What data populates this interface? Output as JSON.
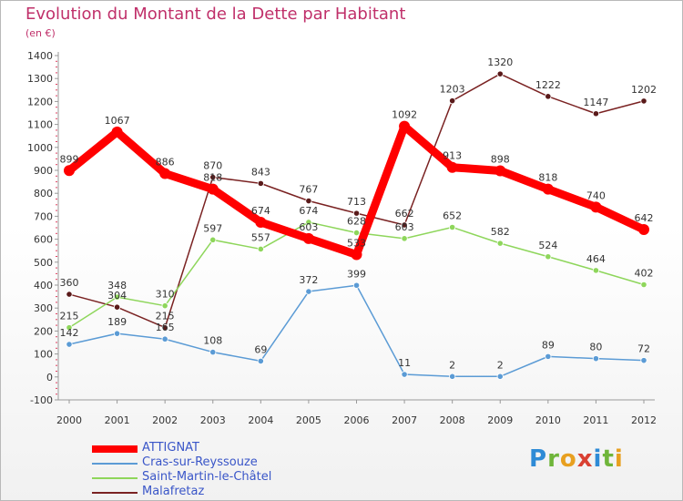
{
  "title": "Evolution du Montant de la Dette par Habitant",
  "subtitle": "(en €)",
  "logo_text": "Proxiti",
  "chart_data": {
    "type": "line",
    "title": "Evolution du Montant de la Dette par Habitant",
    "ylabel": "(en €)",
    "xlabel": "",
    "ylim": [
      -100,
      1400
    ],
    "grid": false,
    "legend_position": "bottom-left",
    "y_ticks": [
      -100,
      0,
      100,
      200,
      300,
      400,
      500,
      600,
      700,
      800,
      900,
      1000,
      1100,
      1200,
      1300,
      1400
    ],
    "categories": [
      "2000",
      "2001",
      "2002",
      "2003",
      "2004",
      "2005",
      "2006",
      "2007",
      "2008",
      "2009",
      "2010",
      "2011",
      "2012"
    ],
    "series": [
      {
        "name": "ATTIGNAT",
        "color": "#ff0000",
        "values": [
          899,
          1067,
          886,
          818,
          674,
          603,
          533,
          1092,
          913,
          898,
          818,
          740,
          642
        ]
      },
      {
        "name": "Cras-sur-Reyssouze",
        "color": "#5b9bd5",
        "values": [
          142,
          189,
          165,
          108,
          69,
          372,
          399,
          11,
          2,
          2,
          89,
          80,
          72
        ]
      },
      {
        "name": "Saint-Martin-le-Châtel",
        "color": "#8ed65b",
        "values": [
          215,
          348,
          310,
          597,
          557,
          674,
          628,
          603,
          652,
          582,
          524,
          464,
          402
        ]
      },
      {
        "name": "Malafretaz",
        "color": "#7a2222",
        "values": [
          360,
          304,
          215,
          870,
          843,
          767,
          713,
          662,
          1203,
          1320,
          1222,
          1147,
          1202
        ]
      }
    ]
  }
}
